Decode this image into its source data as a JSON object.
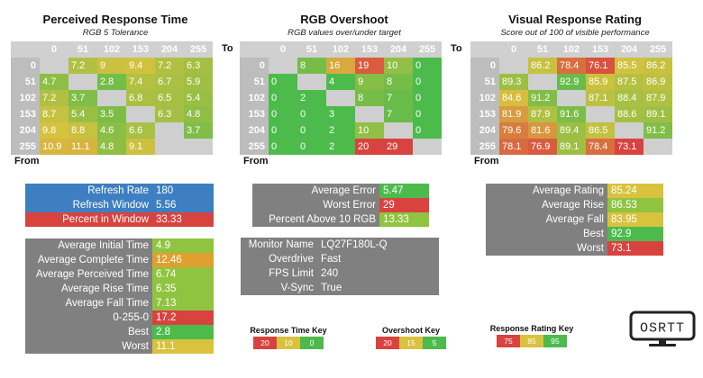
{
  "colors": {
    "green": "#4cbb4c",
    "lime": "#8fc440",
    "yellow": "#d8c23e",
    "orange": "#e0a030",
    "red": "#d9433f",
    "blue": "#3d7fc0",
    "gray": "#808080",
    "na": "#cfcfcf"
  },
  "chart_data": [
    {
      "type": "heatmap",
      "title": "Perceived Response Time",
      "subtitle": "RGB 5 Tolerance",
      "to_label": "To",
      "from_label": "From",
      "columns": [
        "0",
        "51",
        "102",
        "153",
        "204",
        "255"
      ],
      "rows": [
        "0",
        "51",
        "102",
        "153",
        "204",
        "255"
      ],
      "values": [
        [
          null,
          7.2,
          9,
          9.4,
          7.2,
          6.3
        ],
        [
          4.7,
          null,
          2.8,
          7.4,
          6.7,
          5.9
        ],
        [
          7.2,
          3.7,
          null,
          6.8,
          6.5,
          5.4
        ],
        [
          8.7,
          5.4,
          3.5,
          null,
          6.3,
          4.8
        ],
        [
          9.8,
          8.8,
          4.6,
          6.6,
          null,
          3.7
        ],
        [
          10.9,
          11.1,
          4.8,
          9.1,
          null,
          null
        ]
      ],
      "text": [
        [
          "",
          "7.2",
          "9",
          "9.4",
          "7.2",
          "6.3"
        ],
        [
          "4.7",
          "",
          "2.8",
          "7.4",
          "6.7",
          "5.9"
        ],
        [
          "7.2",
          "3.7",
          "",
          "6.8",
          "6.5",
          "5.4"
        ],
        [
          "8.7",
          "5.4",
          "3.5",
          "",
          "6.3",
          "4.8"
        ],
        [
          "9.8",
          "8.8",
          "4.6",
          "6.6",
          "",
          "3.7"
        ],
        [
          "10.9",
          "11.1",
          "4.8",
          "9.1",
          "",
          ""
        ]
      ],
      "scale": {
        "low": 0,
        "mid": 10,
        "high": 20,
        "higher_is_better": false
      }
    },
    {
      "type": "heatmap",
      "title": "RGB Overshoot",
      "subtitle": "RGB values over/under target",
      "to_label": "To",
      "from_label": "From",
      "columns": [
        "0",
        "51",
        "102",
        "153",
        "204",
        "255"
      ],
      "rows": [
        "0",
        "51",
        "102",
        "153",
        "204",
        "255"
      ],
      "values": [
        [
          null,
          8,
          16,
          19,
          10,
          0
        ],
        [
          0,
          null,
          4,
          9,
          8,
          0
        ],
        [
          0,
          2,
          null,
          8,
          7,
          0
        ],
        [
          0,
          0,
          3,
          null,
          7,
          0
        ],
        [
          0,
          0,
          2,
          10,
          null,
          0
        ],
        [
          0,
          0,
          2,
          20,
          29,
          null
        ]
      ],
      "text": [
        [
          "",
          "8",
          "16",
          "19",
          "10",
          "0"
        ],
        [
          "0",
          "",
          "4",
          "9",
          "8",
          "0"
        ],
        [
          "0",
          "2",
          "",
          "8",
          "7",
          "0"
        ],
        [
          "0",
          "0",
          "3",
          "",
          "7",
          "0"
        ],
        [
          "0",
          "0",
          "2",
          "10",
          "",
          "0"
        ],
        [
          "0",
          "0",
          "2",
          "20",
          "29",
          ""
        ]
      ],
      "scale": {
        "low": 5,
        "mid": 15,
        "high": 20,
        "higher_is_better": false
      }
    },
    {
      "type": "heatmap",
      "title": "Visual Response Rating",
      "subtitle": "Score out of 100 of visible performance",
      "to_label": "To",
      "from_label": "From",
      "columns": [
        "0",
        "51",
        "102",
        "153",
        "204",
        "255"
      ],
      "rows": [
        "0",
        "51",
        "102",
        "153",
        "204",
        "255"
      ],
      "values": [
        [
          null,
          86.2,
          78.4,
          76.1,
          85.5,
          86.2
        ],
        [
          89.3,
          null,
          92.9,
          85.9,
          87.5,
          86.9
        ],
        [
          84.6,
          91.2,
          null,
          87.1,
          88.4,
          87.9
        ],
        [
          81.9,
          87.9,
          91.6,
          null,
          88.6,
          89.1
        ],
        [
          79.6,
          81.6,
          89.4,
          86.5,
          null,
          91.2
        ],
        [
          78.1,
          76.9,
          89.1,
          78.4,
          73.1,
          null
        ]
      ],
      "text": [
        [
          "",
          "86.2",
          "78.4",
          "76.1",
          "85.5",
          "86.2"
        ],
        [
          "89.3",
          "",
          "92.9",
          "85.9",
          "87.5",
          "86.9"
        ],
        [
          "84.6",
          "91.2",
          "",
          "87.1",
          "88.4",
          "87.9"
        ],
        [
          "81.9",
          "87.9",
          "91.6",
          "",
          "88.6",
          "89.1"
        ],
        [
          "79.6",
          "81.6",
          "89.4",
          "86.5",
          "",
          "91.2"
        ],
        [
          "78.1",
          "76.9",
          "89.1",
          "78.4",
          "73.1",
          ""
        ]
      ],
      "scale": {
        "low": 75,
        "mid": 85,
        "high": 95,
        "higher_is_better": true
      }
    }
  ],
  "panels": {
    "refresh": [
      {
        "label": "Refresh Rate",
        "value": "180",
        "label_color": "blue",
        "value_color": "blue"
      },
      {
        "label": "Refresh Window",
        "value": "5.56",
        "label_color": "blue",
        "value_color": "blue"
      },
      {
        "label": "Percent in Window",
        "value": "33.33",
        "label_color": "red",
        "value_color": "red"
      }
    ],
    "response": [
      {
        "label": "Average Initial Time",
        "value": "4.9",
        "value_color": "lime"
      },
      {
        "label": "Average Complete Time",
        "value": "12.46",
        "value_color": "orange"
      },
      {
        "label": "Average Perceived Time",
        "value": "6.74",
        "value_color": "lime"
      },
      {
        "label": "Average Rise Time",
        "value": "6.35",
        "value_color": "lime"
      },
      {
        "label": "Average Fall Time",
        "value": "7.13",
        "value_color": "lime"
      },
      {
        "label": "0-255-0",
        "value": "17.2",
        "value_color": "red"
      },
      {
        "label": "Best",
        "value": "2.8",
        "value_color": "green"
      },
      {
        "label": "Worst",
        "value": "11.1",
        "value_color": "yellow"
      }
    ],
    "overshoot": [
      {
        "label": "Average Error",
        "value": "5.47",
        "value_color": "green"
      },
      {
        "label": "Worst Error",
        "value": "29",
        "value_color": "red"
      },
      {
        "label": "Percent Above 10 RGB",
        "value": "13.33",
        "value_color": "lime"
      }
    ],
    "monitor": [
      {
        "label": "Monitor Name",
        "value": "LQ27F180L-Q"
      },
      {
        "label": "Overdrive",
        "value": "Fast"
      },
      {
        "label": "FPS Limit",
        "value": "240"
      },
      {
        "label": "V-Sync",
        "value": "True"
      }
    ],
    "rating": [
      {
        "label": "Average Rating",
        "value": "85.24",
        "value_color": "yellow"
      },
      {
        "label": "Average Rise",
        "value": "86.53",
        "value_color": "lime"
      },
      {
        "label": "Average Fall",
        "value": "83.95",
        "value_color": "yellow"
      },
      {
        "label": "Best",
        "value": "92.9",
        "value_color": "green"
      },
      {
        "label": "Worst",
        "value": "73.1",
        "value_color": "red"
      }
    ]
  },
  "keys": [
    {
      "title": "Response Time Key",
      "items": [
        {
          "text": "20",
          "color": "red"
        },
        {
          "text": "10",
          "color": "yellow"
        },
        {
          "text": "0",
          "color": "green"
        }
      ]
    },
    {
      "title": "Overshoot Key",
      "items": [
        {
          "text": "20",
          "color": "red"
        },
        {
          "text": "15",
          "color": "yellow"
        },
        {
          "text": "5",
          "color": "green"
        }
      ]
    },
    {
      "title": "Response Rating Key",
      "items": [
        {
          "text": "75",
          "color": "red"
        },
        {
          "text": "85",
          "color": "yellow"
        },
        {
          "text": "95",
          "color": "green"
        }
      ]
    }
  ],
  "logo": {
    "text": "OSRTT",
    "icon": "monitor-icon"
  }
}
